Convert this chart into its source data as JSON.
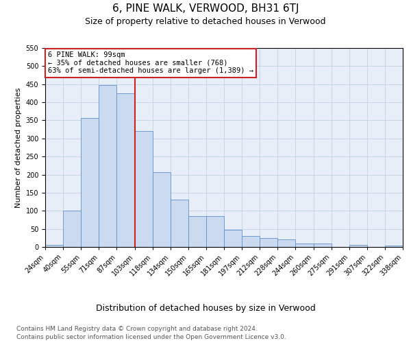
{
  "title": "6, PINE WALK, VERWOOD, BH31 6TJ",
  "subtitle": "Size of property relative to detached houses in Verwood",
  "xlabel": "Distribution of detached houses by size in Verwood",
  "ylabel": "Number of detached properties",
  "bar_labels": [
    "24sqm",
    "40sqm",
    "55sqm",
    "71sqm",
    "87sqm",
    "103sqm",
    "118sqm",
    "134sqm",
    "150sqm",
    "165sqm",
    "181sqm",
    "197sqm",
    "212sqm",
    "228sqm",
    "244sqm",
    "260sqm",
    "275sqm",
    "291sqm",
    "307sqm",
    "322sqm",
    "338sqm"
  ],
  "bar_values": [
    5,
    100,
    357,
    447,
    425,
    320,
    207,
    130,
    85,
    85,
    48,
    30,
    24,
    20,
    10,
    10,
    0,
    5,
    0,
    3
  ],
  "bar_color": "#ccdaf0",
  "bar_edge_color": "#6090cc",
  "annotation_text_line1": "6 PINE WALK: 99sqm",
  "annotation_text_line2": "← 35% of detached houses are smaller (768)",
  "annotation_text_line3": "63% of semi-detached houses are larger (1,389) →",
  "annotation_box_facecolor": "#ffffff",
  "annotation_box_edgecolor": "#cc2222",
  "vline_color": "#cc2222",
  "vline_x": 5,
  "ylim": [
    0,
    550
  ],
  "yticks": [
    0,
    50,
    100,
    150,
    200,
    250,
    300,
    350,
    400,
    450,
    500,
    550
  ],
  "grid_color": "#c5d5e8",
  "background_color": "#e8eef8",
  "footer_text": "Contains HM Land Registry data © Crown copyright and database right 2024.\nContains public sector information licensed under the Open Government Licence v3.0.",
  "title_fontsize": 11,
  "subtitle_fontsize": 9,
  "xlabel_fontsize": 9,
  "ylabel_fontsize": 8,
  "tick_fontsize": 7,
  "annotation_fontsize": 7.5,
  "footer_fontsize": 6.5
}
